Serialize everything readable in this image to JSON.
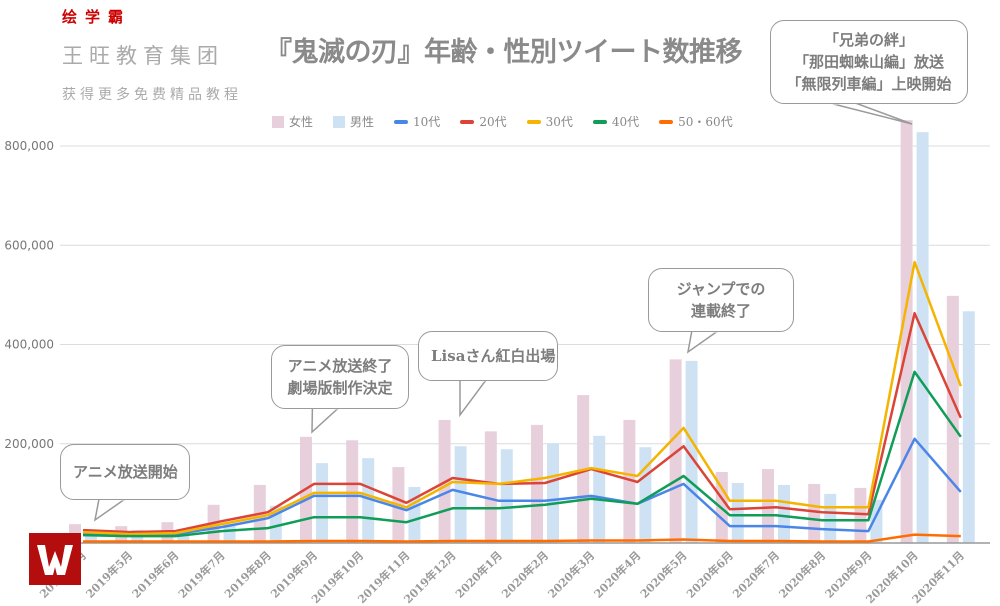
{
  "chart_data": {
    "type": "bar",
    "title": "『鬼滅の刃』年齢・性別ツイート数推移",
    "xlabel": "",
    "ylabel": "",
    "ylim": [
      0,
      850000
    ],
    "yticks": [
      200000,
      400000,
      600000,
      800000
    ],
    "ytick_labels": [
      "200,000",
      "400,000",
      "600,000",
      "800,000"
    ],
    "grid": true,
    "legend_position": "top",
    "categories": [
      "2019年4月",
      "2019年5月",
      "2019年6月",
      "2019年7月",
      "2019年8月",
      "2019年9月",
      "2019年10月",
      "2019年11月",
      "2019年12月",
      "2020年1月",
      "2020年2月",
      "2020年3月",
      "2020年4月",
      "2020年5月",
      "2020年6月",
      "2020年7月",
      "2020年8月",
      "2020年9月",
      "2020年10月",
      "2020年11月"
    ],
    "bar_series": [
      {
        "name": "女性",
        "color": "#e8cfdc",
        "values": [
          38000,
          34000,
          42000,
          77000,
          117000,
          214000,
          207000,
          153000,
          248000,
          225000,
          238000,
          298000,
          248000,
          370000,
          143000,
          149000,
          119000,
          111000,
          852000,
          498000
        ]
      },
      {
        "name": "男性",
        "color": "#cfe2f3",
        "values": [
          26000,
          26000,
          24000,
          38000,
          75000,
          161000,
          171000,
          113000,
          195000,
          189000,
          201000,
          216000,
          193000,
          367000,
          121000,
          117000,
          99000,
          87000,
          828000,
          467000
        ]
      }
    ],
    "line_series": [
      {
        "name": "10代",
        "color": "#4a86e8",
        "values": [
          20000,
          16000,
          18000,
          32000,
          50000,
          95000,
          95000,
          66000,
          107000,
          85000,
          85000,
          95000,
          79000,
          119000,
          34000,
          34000,
          28000,
          24000,
          210000,
          103000
        ]
      },
      {
        "name": "20代",
        "color": "#db4437",
        "values": [
          26000,
          22000,
          24000,
          44000,
          62000,
          119000,
          119000,
          81000,
          131000,
          119000,
          121000,
          149000,
          123000,
          195000,
          68000,
          72000,
          62000,
          58000,
          463000,
          252000
        ]
      },
      {
        "name": "30代",
        "color": "#f4b400",
        "values": [
          22000,
          18000,
          20000,
          38000,
          56000,
          101000,
          101000,
          72000,
          123000,
          119000,
          131000,
          151000,
          135000,
          232000,
          85000,
          85000,
          72000,
          72000,
          566000,
          316000
        ]
      },
      {
        "name": "40代",
        "color": "#0f9d58",
        "values": [
          16000,
          14000,
          14000,
          24000,
          30000,
          52000,
          52000,
          42000,
          70000,
          70000,
          77000,
          89000,
          79000,
          135000,
          56000,
          56000,
          46000,
          46000,
          345000,
          214000
        ]
      },
      {
        "name": "50・60代",
        "color": "#ff6d01",
        "values": [
          3000,
          3000,
          3000,
          3000,
          3000,
          4000,
          4000,
          3000,
          4000,
          4000,
          4000,
          5000,
          5000,
          7000,
          4000,
          4000,
          3000,
          3000,
          17000,
          14000
        ]
      }
    ],
    "annotations": [
      {
        "category": "2019年4月",
        "lines": [
          "アニメ放送開始"
        ]
      },
      {
        "category": "2019年9月",
        "lines": [
          "アニメ放送終了",
          "劇場版制作決定"
        ]
      },
      {
        "category": "2019年12月",
        "lines": [
          "Lisaさん紅白出場"
        ]
      },
      {
        "category": "2020年5月",
        "lines": [
          "ジャンプでの",
          "連載終了"
        ]
      },
      {
        "category": "2020年10月",
        "lines": [
          "「兄弟の絆」",
          "「那田蜘蛛山編」放送",
          "「無限列車編」上映開始"
        ]
      }
    ]
  },
  "watermark": {
    "company": "王旺教育集团",
    "slogan": "获得更多免费精品教程",
    "brand": "绘学霸"
  }
}
